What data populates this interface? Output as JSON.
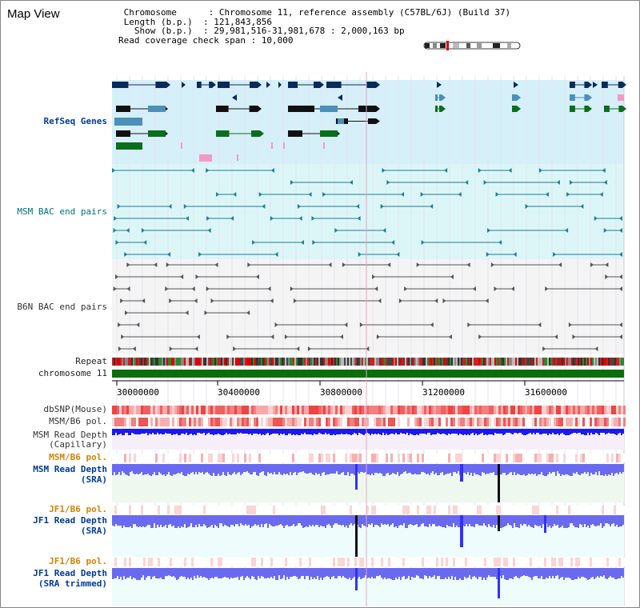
{
  "map_title": "Map View",
  "info": {
    "chromosome_line": " Chromosome      : Chromosome 11, reference assembly (C57BL/6J) (Build 37)",
    "length_line": " Length (b.p.)  : 121,843,856",
    "show_line": "   Show (b.p.)  : 29,981,516-31,981,678 : 2,000,163 bp",
    "coverage_line": "Read coverage check span : 10,000"
  },
  "tracks": {
    "refseq": "RefSeq Genes",
    "msm_bac": "MSM BAC end pairs",
    "b6n_bac": "B6N BAC end pairs",
    "repeat": "Repeat",
    "chromosome": "chromosome 11",
    "dbsnp": "dbSNP(Mouse)",
    "msm_b6_pol_1": "MSM/B6 pol.",
    "msm_depth_cap_1": "MSM Read Depth",
    "msm_depth_cap_2": "(Capillary)",
    "msm_b6_pol_2": "MSM/B6 pol.",
    "msm_depth_sra_1": "MSM Read Depth",
    "msm_depth_sra_2": "(SRA)",
    "jf1_b6_pol_1": "JF1/B6 pol.",
    "jf1_depth_sra_1": "JF1 Read Depth",
    "jf1_depth_sra_2": "(SRA)",
    "jf1_b6_pol_2": "JF1/B6 pol.",
    "jf1_depth_trim_1": "JF1 Read Depth",
    "jf1_depth_trim_2": "(SRA trimmed)"
  },
  "axis_ticks": [
    "30000000",
    "30400000",
    "30800000",
    "31200000",
    "31600000"
  ],
  "colors": {
    "gene_dark": "#0a2a5a",
    "gene_mid": "#4a90b8",
    "gene_green": "#0a6e1a",
    "gene_pink": "#f39ac4",
    "refseq_bg": "#d6f0fa",
    "msm_bac_bg": "#dcf6f8",
    "b6n_bg": "#f4f4f4",
    "chromosome_bar": "#0a6e0a",
    "depth_blue": "#1a1af0",
    "depth_purple": "#6a6af0"
  }
}
